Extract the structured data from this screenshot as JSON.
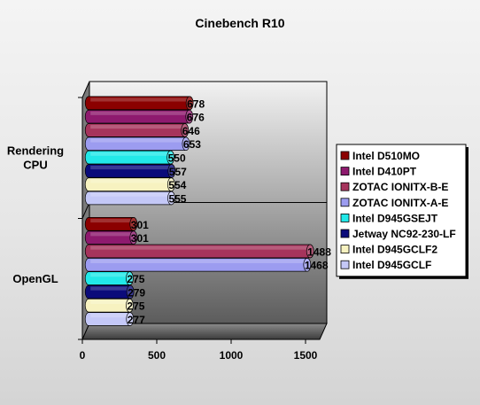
{
  "chart_data": {
    "type": "bar",
    "orientation": "horizontal",
    "title": "Cinebench R10",
    "categories": [
      "Rendering CPU",
      "OpenGL"
    ],
    "xlim": [
      0,
      1500
    ],
    "x_ticks": [
      0,
      500,
      1000,
      1500
    ],
    "grid": false,
    "three_d": true,
    "legend_position": "right",
    "series": [
      {
        "name": "Intel D510MO",
        "values": [
          678,
          301
        ],
        "color": "#8b0000"
      },
      {
        "name": "Intel D410PT",
        "values": [
          676,
          301
        ],
        "color": "#8e1a6e"
      },
      {
        "name": "ZOTAC IONITX-B-E",
        "values": [
          646,
          1488
        ],
        "color": "#a6345c"
      },
      {
        "name": "ZOTAC IONITX-A-E",
        "values": [
          653,
          1468
        ],
        "color": "#9c9cf0"
      },
      {
        "name": "Intel D945GSEJT",
        "values": [
          550,
          275
        ],
        "color": "#22e8e8"
      },
      {
        "name": "Jetway NC92-230-LF",
        "values": [
          557,
          279
        ],
        "color": "#0b0b7a"
      },
      {
        "name": "Intel D945GCLF2",
        "values": [
          554,
          275
        ],
        "color": "#f7f2c0"
      },
      {
        "name": "Intel D945GCLF",
        "values": [
          555,
          277
        ],
        "color": "#c4c8f7"
      }
    ]
  }
}
